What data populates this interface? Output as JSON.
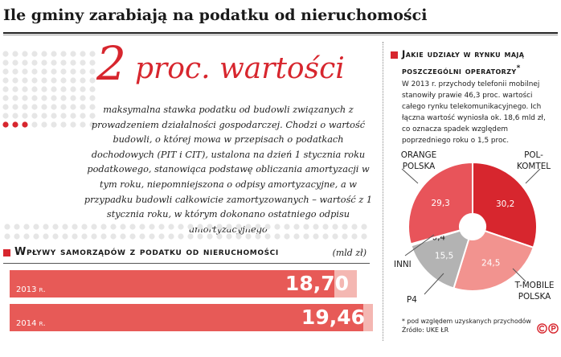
{
  "header": {
    "title": "Ile gminy zarabiają na podatku od nieruchomości"
  },
  "headline": {
    "value": "2",
    "unit": "proc. wartości",
    "description": "maksymalna stawka podatku od budowli związanych z prowadzeniem działalności gospodarczej. Chodzi o wartość budowli, o której mowa w przepisach o podatkach dochodowych (PIT i CIT), ustalona na dzień 1 stycznia roku podatkowego, stanowiąca podstawę obliczania amortyzacji w tym roku, niepomniejszona o odpisy amortyzacyjne, a w przypadku budowli całkowicie zamortyzowanych – wartość z 1 stycznia roku, w którym dokonano ostatniego odpisu amortyzacyjnego"
  },
  "revenue_panel": {
    "title": "Wpływy samorządów z podatku od nieruchomości",
    "unit": "(mld zł)"
  },
  "market_panel": {
    "title": "Jakie udziały w rynku mają poszczególni operatorzy",
    "title_mark": "*",
    "description": "W 2013 r. przychody telefonii mobilnej stanowiły prawie 46,3 proc. wartości całego rynku telekomunikacyjnego. Ich łączna wartość wyniosła ok. 18,6 mld zł, co oznacza spadek względem poprzedniego roku o 1,5 proc.",
    "footnote": "* pod względem uzyskanych przychodów",
    "source": "Źródło: UKE  ŁR"
  },
  "chart_data": [
    {
      "type": "bar",
      "orientation": "horizontal",
      "title": "Wpływy samorządów z podatku od nieruchomości",
      "unit": "(mld zł)",
      "categories": [
        "2013 r.",
        "2014 r."
      ],
      "values": [
        18.7,
        19.46
      ],
      "value_labels": [
        "18,70",
        "19,46"
      ],
      "xlim": [
        0,
        20
      ],
      "colors": {
        "bar": "#e75a57",
        "track": "#f4b7b2"
      }
    },
    {
      "type": "pie",
      "title": "Jakie udziały w rynku mają poszczególni operatorzy",
      "slices": [
        {
          "label": "POL-KOMTEL",
          "value": 30.2,
          "value_label": "30,2",
          "color": "#d7262e"
        },
        {
          "label": "T-MOBILE POLSKA",
          "value": 24.5,
          "value_label": "24,5",
          "color": "#f2938f"
        },
        {
          "label": "P4",
          "value": 15.5,
          "value_label": "15,5",
          "color": "#b3b3b3"
        },
        {
          "label": "INNI",
          "value": 0.4,
          "value_label": "0,4",
          "color": "#ffffff"
        },
        {
          "label": "ORANGE POLSKA",
          "value": 29.3,
          "value_label": "29,3",
          "color": "#e8545a"
        }
      ]
    }
  ],
  "logo": {
    "name": "copyright-p-logo",
    "color": "#d7262e"
  }
}
